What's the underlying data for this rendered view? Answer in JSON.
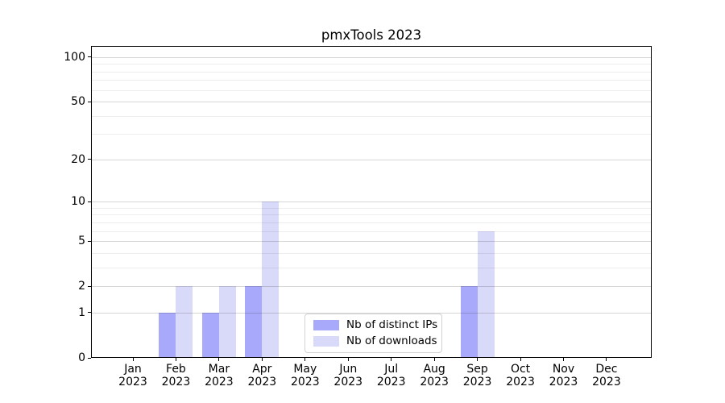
{
  "chart_data": {
    "type": "bar",
    "title": "pmxTools 2023",
    "categories": [
      "Jan 2023",
      "Feb 2023",
      "Mar 2023",
      "Apr 2023",
      "May 2023",
      "Jun 2023",
      "Jul 2023",
      "Aug 2023",
      "Sep 2023",
      "Oct 2023",
      "Nov 2023",
      "Dec 2023"
    ],
    "series": [
      {
        "name": "Nb of distinct IPs",
        "color": "#a9a9fb",
        "values": [
          0,
          1,
          1,
          2,
          0,
          0,
          0,
          0,
          2,
          0,
          0,
          0
        ]
      },
      {
        "name": "Nb of downloads",
        "color": "#d9d9f9",
        "values": [
          0,
          2,
          2,
          10,
          0,
          0,
          0,
          0,
          6,
          0,
          0,
          0
        ]
      }
    ],
    "yscale": "log1p",
    "yticks": [
      0,
      1,
      2,
      5,
      10,
      20,
      50,
      100
    ],
    "minor_yticks": [
      3,
      4,
      6,
      7,
      8,
      9,
      30,
      40,
      60,
      70,
      80,
      90
    ],
    "ylim": [
      0,
      119
    ],
    "xlabel": "",
    "ylabel": "",
    "grid": true,
    "legend_position": "lower center",
    "colors": {
      "major_grid": "rgba(0,0,0,0.16)",
      "minor_grid": "rgba(0,0,0,0.07)",
      "spine": "#000000",
      "background": "#ffffff"
    }
  }
}
